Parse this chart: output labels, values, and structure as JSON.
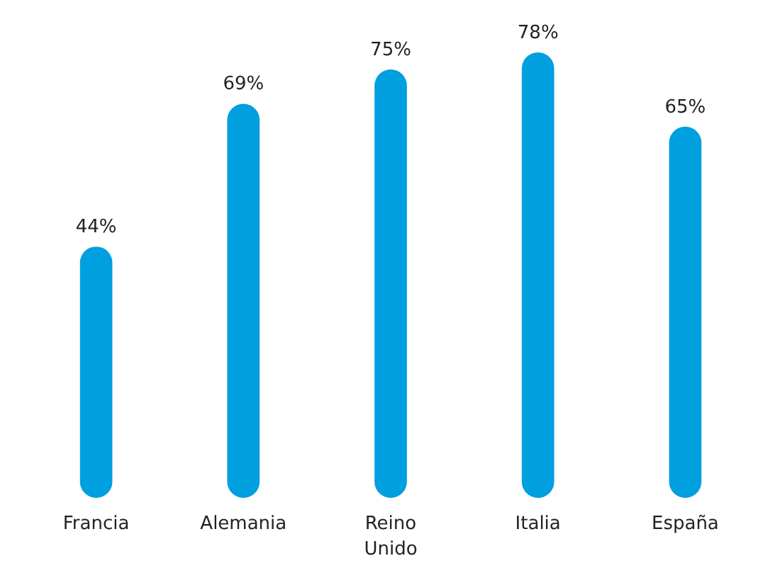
{
  "chart_data": {
    "type": "bar",
    "categories": [
      "Francia",
      "Alemania",
      "Reino\nUnido",
      "Italia",
      "España"
    ],
    "values": [
      44,
      69,
      75,
      78,
      65
    ],
    "value_labels": [
      "44%",
      "69%",
      "75%",
      "78%",
      "65%"
    ],
    "color": "#009fdf",
    "grid": false
  }
}
